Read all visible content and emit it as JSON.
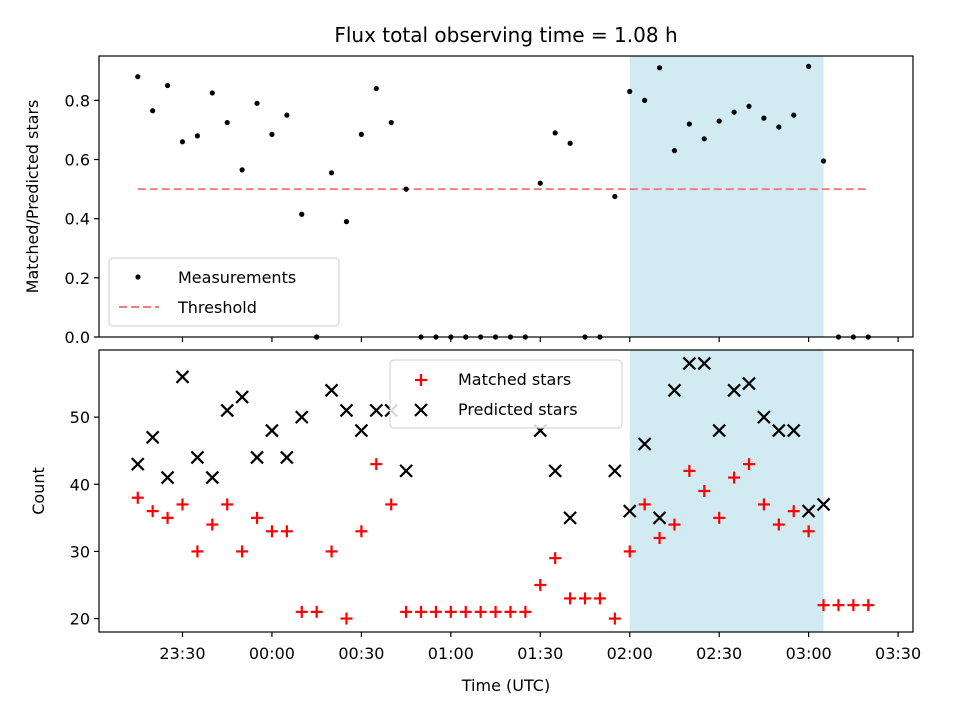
{
  "chart_data": [
    {
      "type": "scatter",
      "title": "Flux total observing time = 1.08 h",
      "ylabel": "Matched/Predicted stars",
      "xlabel": "",
      "x_unit": "time (UTC)",
      "ylim": [
        0,
        0.95
      ],
      "yticks": [
        "0.0",
        "0.2",
        "0.4",
        "0.6",
        "0.8"
      ],
      "yticks_values": [
        0,
        0.2,
        0.4,
        0.6,
        0.8
      ],
      "shaded_span": [
        "02:00",
        "03:05"
      ],
      "shade_color": "#add8e6",
      "series": [
        {
          "name": "Measurements",
          "color": "#000000",
          "marker": "dot",
          "x": [
            "23:15",
            "23:20",
            "23:25",
            "23:30",
            "23:35",
            "23:40",
            "23:45",
            "23:50",
            "23:55",
            "00:00",
            "00:05",
            "00:10",
            "00:15",
            "00:20",
            "00:25",
            "00:30",
            "00:35",
            "00:40",
            "00:45",
            "00:50",
            "00:55",
            "01:00",
            "01:05",
            "01:10",
            "01:15",
            "01:20",
            "01:25",
            "01:30",
            "01:35",
            "01:40",
            "01:45",
            "01:50",
            "01:55",
            "02:00",
            "02:05",
            "02:10",
            "02:15",
            "02:20",
            "02:25",
            "02:30",
            "02:35",
            "02:40",
            "02:45",
            "02:50",
            "02:55",
            "03:00",
            "03:05",
            "03:10",
            "03:15",
            "03:20"
          ],
          "values": [
            0.88,
            0.765,
            0.85,
            0.66,
            0.68,
            0.825,
            0.725,
            0.565,
            0.79,
            0.685,
            0.75,
            0.415,
            0.0,
            0.555,
            0.39,
            0.685,
            0.84,
            0.725,
            0.5,
            0.0,
            0.0,
            0.0,
            0.0,
            0.0,
            0.0,
            0.0,
            0.0,
            0.52,
            0.69,
            0.655,
            0.0,
            0.0,
            0.475,
            0.83,
            0.8,
            0.91,
            0.63,
            0.72,
            0.67,
            0.73,
            0.76,
            0.78,
            0.74,
            0.71,
            0.75,
            0.915,
            0.595,
            0.0,
            0.0,
            0.0
          ]
        },
        {
          "name": "Threshold",
          "color": "#f08080",
          "style": "dashed",
          "x": [
            "23:15",
            "03:20"
          ],
          "values": [
            0.5,
            0.5
          ]
        }
      ],
      "legend_position": "lower-left"
    },
    {
      "type": "scatter",
      "title": "",
      "xlabel": "Time (UTC)",
      "ylabel": "Count",
      "ylim": [
        18,
        60
      ],
      "xlim": [
        "23:02",
        "03:35"
      ],
      "xticks": [
        "23:30",
        "00:00",
        "00:30",
        "01:00",
        "01:30",
        "02:00",
        "02:30",
        "03:00",
        "03:30"
      ],
      "yticks": [
        "20",
        "30",
        "40",
        "50"
      ],
      "yticks_values": [
        20,
        30,
        40,
        50
      ],
      "shaded_span": [
        "02:00",
        "03:05"
      ],
      "shade_color": "#add8e6",
      "series": [
        {
          "name": "Matched stars",
          "color": "#ff0000",
          "marker": "+",
          "x": [
            "23:15",
            "23:20",
            "23:25",
            "23:30",
            "23:35",
            "23:40",
            "23:45",
            "23:50",
            "23:55",
            "00:00",
            "00:05",
            "00:10",
            "00:15",
            "00:20",
            "00:25",
            "00:30",
            "00:35",
            "00:40",
            "00:45",
            "00:50",
            "00:55",
            "01:00",
            "01:05",
            "01:10",
            "01:15",
            "01:20",
            "01:25",
            "01:30",
            "01:35",
            "01:40",
            "01:45",
            "01:50",
            "01:55",
            "02:00",
            "02:05",
            "02:10",
            "02:15",
            "02:20",
            "02:25",
            "02:30",
            "02:35",
            "02:40",
            "02:45",
            "02:50",
            "02:55",
            "03:00",
            "03:05",
            "03:10",
            "03:15",
            "03:20"
          ],
          "values": [
            38,
            36,
            35,
            37,
            30,
            34,
            37,
            30,
            35,
            33,
            33,
            21,
            21,
            30,
            20,
            33,
            43,
            37,
            21,
            21,
            21,
            21,
            21,
            21,
            21,
            21,
            21,
            25,
            29,
            23,
            23,
            23,
            20,
            30,
            37,
            32,
            34,
            42,
            39,
            35,
            41,
            43,
            37,
            34,
            36,
            33,
            22,
            22,
            22,
            22
          ]
        },
        {
          "name": "Predicted stars",
          "color": "#000000",
          "marker": "x",
          "x": [
            "23:15",
            "23:20",
            "23:25",
            "23:30",
            "23:35",
            "23:40",
            "23:45",
            "23:50",
            "23:55",
            "00:00",
            "00:05",
            "00:10",
            "00:20",
            "00:25",
            "00:30",
            "00:35",
            "00:40",
            "00:45",
            "01:30",
            "01:35",
            "01:40",
            "01:55",
            "02:00",
            "02:05",
            "02:10",
            "02:15",
            "02:20",
            "02:25",
            "02:30",
            "02:35",
            "02:40",
            "02:45",
            "02:50",
            "02:55",
            "03:00",
            "03:05"
          ],
          "values": [
            43,
            47,
            41,
            56,
            44,
            41,
            51,
            53,
            44,
            48,
            44,
            50,
            54,
            51,
            48,
            51,
            51,
            42,
            48,
            42,
            35,
            42,
            36,
            46,
            35,
            54,
            58,
            58,
            48,
            54,
            55,
            50,
            48,
            48,
            36,
            37
          ]
        }
      ],
      "legend_position": "top-center"
    }
  ]
}
